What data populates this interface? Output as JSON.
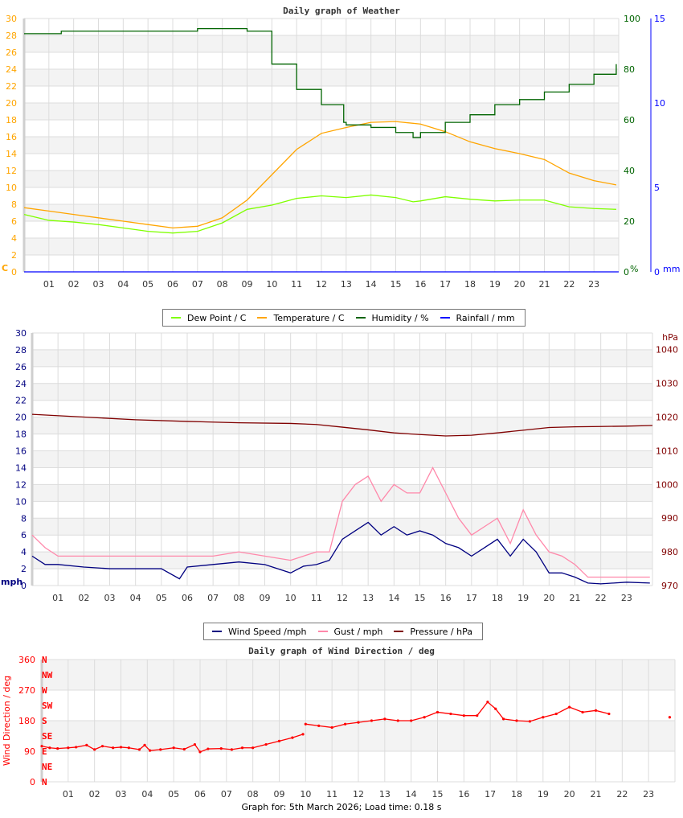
{
  "chart_data": [
    {
      "type": "line",
      "title": "Daily graph of Weather",
      "xlabel": "",
      "x_ticks": [
        "01",
        "02",
        "03",
        "04",
        "05",
        "06",
        "07",
        "08",
        "09",
        "10",
        "11",
        "12",
        "13",
        "14",
        "15",
        "16",
        "17",
        "18",
        "19",
        "20",
        "21",
        "22",
        "23"
      ],
      "xlim": [
        0,
        24
      ],
      "axes": {
        "left": {
          "label": "C",
          "ylim": [
            0,
            30
          ],
          "ticks": [
            0,
            2,
            4,
            6,
            8,
            10,
            12,
            14,
            16,
            18,
            20,
            22,
            24,
            26,
            28,
            30
          ],
          "color": "#ffa500"
        },
        "right1": {
          "label": "%",
          "ylim": [
            0,
            100
          ],
          "ticks": [
            0,
            20,
            40,
            60,
            80,
            100
          ],
          "color": "#006400"
        },
        "right2": {
          "label": "mm",
          "ylim": [
            0,
            15
          ],
          "ticks": [
            0,
            5,
            10,
            15
          ],
          "color": "#0000ff"
        }
      },
      "grid": true,
      "legend": "bottom",
      "series": [
        {
          "name": "Dew Point / C",
          "axis": "left",
          "color": "#7fff00",
          "x": [
            0,
            1,
            2,
            3,
            4,
            5,
            6,
            7,
            8,
            9,
            10,
            11,
            12,
            13,
            14,
            15,
            15.7,
            16,
            17,
            18,
            19,
            20,
            21,
            22,
            23,
            23.9
          ],
          "y": [
            6.8,
            6.1,
            5.9,
            5.6,
            5.2,
            4.8,
            4.6,
            4.8,
            5.8,
            7.4,
            7.9,
            8.7,
            9.0,
            8.8,
            9.1,
            8.8,
            8.3,
            8.4,
            8.9,
            8.6,
            8.4,
            8.5,
            8.5,
            7.7,
            7.5,
            7.4
          ]
        },
        {
          "name": "Temperature / C",
          "axis": "left",
          "color": "#ffa500",
          "x": [
            0,
            1,
            2,
            3,
            4,
            5,
            6,
            7,
            8,
            9,
            10,
            11,
            12,
            13,
            14,
            15,
            16,
            17,
            18,
            19,
            20,
            21,
            22,
            23,
            23.9
          ],
          "y": [
            7.6,
            7.2,
            6.8,
            6.4,
            6.0,
            5.6,
            5.2,
            5.4,
            6.4,
            8.5,
            11.5,
            14.5,
            16.4,
            17.1,
            17.7,
            17.8,
            17.5,
            16.6,
            15.4,
            14.6,
            14.0,
            13.3,
            11.7,
            10.8,
            10.3
          ]
        },
        {
          "name": "Humidity / %",
          "axis": "right1",
          "color": "#006400",
          "x": [
            0,
            1,
            1.5,
            2,
            3,
            4,
            5,
            6,
            7,
            8,
            8.9,
            9,
            10,
            11,
            12,
            12.9,
            13,
            14,
            15,
            15.7,
            16,
            17,
            18,
            19,
            20,
            21,
            22,
            23,
            23.9
          ],
          "y": [
            94,
            94,
            95,
            95,
            95,
            95,
            95,
            95,
            96,
            96,
            96,
            95,
            82,
            72,
            66,
            59,
            58,
            57,
            55,
            53,
            55,
            59,
            62,
            66,
            68,
            71,
            74,
            78,
            82
          ]
        },
        {
          "name": "Rainfall / mm",
          "axis": "right2",
          "color": "#0000ff",
          "x": [
            0,
            24
          ],
          "y": [
            0,
            0
          ]
        }
      ]
    },
    {
      "type": "line",
      "title": "",
      "x_ticks": [
        "01",
        "02",
        "03",
        "04",
        "05",
        "06",
        "07",
        "08",
        "09",
        "10",
        "11",
        "12",
        "13",
        "14",
        "15",
        "16",
        "17",
        "18",
        "19",
        "20",
        "21",
        "22",
        "23"
      ],
      "xlim": [
        0,
        24
      ],
      "axes": {
        "left": {
          "label": "mph",
          "ylim": [
            0,
            30
          ],
          "ticks": [
            0,
            2,
            4,
            6,
            8,
            10,
            12,
            14,
            16,
            18,
            20,
            22,
            24,
            26,
            28,
            30
          ],
          "color": "#000080"
        },
        "right": {
          "label": "hPa",
          "ylim": [
            970,
            1045
          ],
          "ticks": [
            970,
            980,
            990,
            1000,
            1010,
            1020,
            1030,
            1040
          ],
          "color": "#800000"
        }
      },
      "grid": true,
      "legend": "bottom",
      "series": [
        {
          "name": "Wind Speed /mph",
          "axis": "left",
          "color": "#000080",
          "x": [
            0,
            0.5,
            1,
            2,
            3,
            4,
            5,
            5.7,
            6,
            7,
            8,
            9,
            10,
            10.5,
            11,
            11.5,
            12,
            12.5,
            13,
            13.5,
            14,
            14.5,
            15,
            15.5,
            16,
            16.5,
            17,
            17.5,
            18,
            18.5,
            19,
            19.5,
            20,
            20.5,
            21,
            21.5,
            22,
            23,
            23.9
          ],
          "y": [
            3.5,
            2.5,
            2.5,
            2.2,
            2.0,
            2.0,
            2.0,
            0.8,
            2.2,
            2.5,
            2.8,
            2.5,
            1.5,
            2.3,
            2.5,
            3.0,
            5.5,
            6.5,
            7.5,
            6.0,
            7.0,
            6.0,
            6.5,
            6.0,
            5.0,
            4.5,
            3.5,
            4.5,
            5.5,
            3.5,
            5.5,
            4.0,
            1.5,
            1.5,
            1.0,
            0.3,
            0.2,
            0.4,
            0.3
          ]
        },
        {
          "name": "Gust / mph",
          "axis": "left",
          "color": "#ff88aa",
          "x": [
            0,
            0.5,
            1,
            2,
            3,
            4,
            5,
            6,
            7,
            8,
            9,
            10,
            10.5,
            11,
            11.5,
            12,
            12.5,
            13,
            13.5,
            14,
            14.5,
            15,
            15.5,
            16,
            16.5,
            17,
            17.5,
            18,
            18.5,
            19,
            19.5,
            20,
            20.5,
            21,
            21.5,
            22,
            23,
            23.9
          ],
          "y": [
            6,
            4.5,
            3.5,
            3.5,
            3.5,
            3.5,
            3.5,
            3.5,
            3.5,
            4,
            3.5,
            3,
            3.5,
            4,
            4,
            10,
            12,
            13,
            10,
            12,
            11,
            11,
            14,
            11,
            8,
            6,
            7,
            8,
            5,
            9,
            6,
            4,
            3.5,
            2.5,
            1,
            1,
            1,
            1
          ]
        },
        {
          "name": "Pressure / hPa",
          "axis": "right",
          "color": "#800000",
          "x": [
            0,
            2,
            4,
            6,
            8,
            10,
            11,
            12,
            13,
            14,
            15,
            16,
            17,
            18,
            19,
            20,
            21,
            22,
            23,
            24
          ],
          "y": [
            1020.8,
            1020.0,
            1019.2,
            1018.7,
            1018.3,
            1018.1,
            1017.8,
            1017.0,
            1016.2,
            1015.3,
            1014.8,
            1014.4,
            1014.6,
            1015.3,
            1016.1,
            1016.9,
            1017.1,
            1017.2,
            1017.3,
            1017.5
          ]
        }
      ]
    },
    {
      "type": "scatter",
      "title": "Daily graph of Wind Direction / deg",
      "ylabel": "Wind Direction / deg",
      "x_ticks": [
        "01",
        "02",
        "03",
        "04",
        "05",
        "06",
        "07",
        "08",
        "09",
        "10",
        "11",
        "12",
        "13",
        "14",
        "15",
        "16",
        "17",
        "18",
        "19",
        "20",
        "21",
        "22",
        "23"
      ],
      "xlim": [
        0,
        24
      ],
      "ylim": [
        0,
        360
      ],
      "y_ticks": [
        0,
        90,
        180,
        270,
        360
      ],
      "compass_labels": [
        "N",
        "NW",
        "W",
        "SW",
        "S",
        "SE",
        "E",
        "NE",
        "N"
      ],
      "grid": true,
      "color": "#ff0000",
      "series": [
        {
          "x": [
            0,
            0.3,
            0.6,
            1,
            1.3,
            1.7,
            2,
            2.3,
            2.7,
            3,
            3.3,
            3.7,
            3.9,
            4.1,
            4.5,
            5,
            5.4,
            5.8,
            6,
            6.3,
            6.8,
            7.2,
            7.6,
            8,
            8.5,
            9,
            9.5,
            9.9
          ],
          "y": [
            105,
            100,
            98,
            100,
            102,
            108,
            95,
            105,
            100,
            102,
            100,
            95,
            108,
            92,
            95,
            100,
            96,
            110,
            88,
            97,
            98,
            95,
            100,
            100,
            110,
            120,
            130,
            140
          ]
        },
        {
          "x": [
            10,
            10.5,
            11,
            11.5,
            12,
            12.5,
            13,
            13.5,
            14,
            14.5,
            15,
            15.5,
            16,
            16.5,
            16.9,
            17.2,
            17.5,
            18,
            18.5,
            19,
            19.5,
            20,
            20.5,
            21,
            21.5
          ],
          "y": [
            170,
            165,
            160,
            170,
            175,
            180,
            185,
            180,
            180,
            190,
            205,
            200,
            195,
            195,
            235,
            215,
            185,
            180,
            178,
            190,
            200,
            220,
            205,
            210,
            200
          ]
        },
        {
          "x": [
            23.8
          ],
          "y": [
            190
          ]
        }
      ]
    }
  ],
  "legend1": {
    "items": [
      "Dew Point / C",
      "Temperature / C",
      "Humidity / %",
      "Rainfall / mm"
    ]
  },
  "legend2": {
    "items": [
      "Wind Speed /mph",
      "Gust / mph",
      "Pressure / hPa"
    ]
  },
  "footer": "Graph for: 5th March 2026; Load time: 0.18 s"
}
